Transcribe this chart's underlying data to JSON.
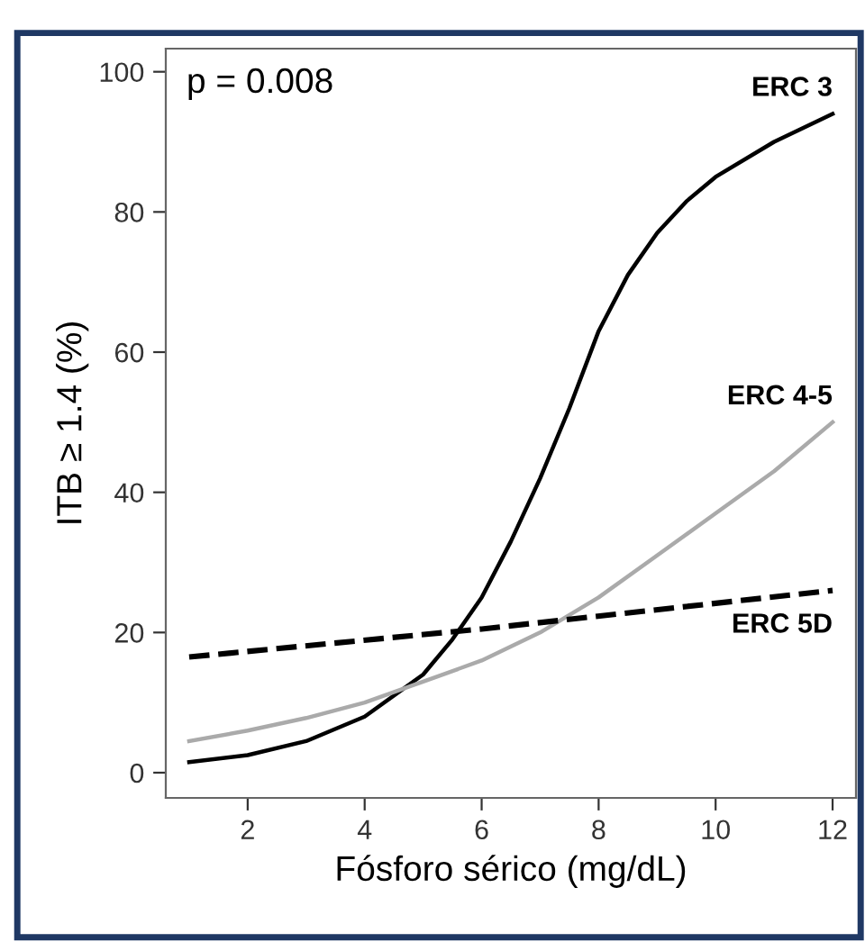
{
  "chart_data": {
    "type": "line",
    "xlabel": "Fósforo sérico (mg/dL)",
    "ylabel": "ITB ≥ 1.4 (%)",
    "annotations": [
      "p = 0.008"
    ],
    "series": [
      {
        "name": "ERC 3",
        "color": "#000000",
        "line_style": "solid",
        "x": [
          1,
          2,
          3,
          4,
          5,
          5.5,
          6,
          6.5,
          7,
          7.5,
          8,
          8.5,
          9,
          9.5,
          10,
          11,
          12
        ],
        "values": [
          1.5,
          2.5,
          4.5,
          8,
          14,
          19,
          25,
          33,
          42,
          52,
          63,
          71,
          77,
          81.5,
          85,
          90,
          94
        ]
      },
      {
        "name": "ERC 4-5",
        "color": "#aaaaaa",
        "line_style": "solid",
        "x": [
          1,
          2,
          3,
          4,
          5,
          6,
          7,
          8,
          9,
          10,
          11,
          12
        ],
        "values": [
          4.5,
          6,
          7.8,
          10,
          13,
          16,
          20,
          25,
          31,
          37,
          43,
          50
        ]
      },
      {
        "name": "ERC 5D",
        "color": "#000000",
        "line_style": "dashed",
        "x": [
          1,
          6,
          12
        ],
        "values": [
          16.5,
          20.5,
          26
        ]
      }
    ],
    "xlim": [
      0.6,
      12.4
    ],
    "ylim": [
      -3.6,
      103.3
    ],
    "xticks": [
      2,
      4,
      6,
      8,
      10,
      12
    ],
    "yticks": [
      0,
      20,
      40,
      60,
      80,
      100
    ],
    "grid": false,
    "legend": false,
    "marker": "none"
  }
}
